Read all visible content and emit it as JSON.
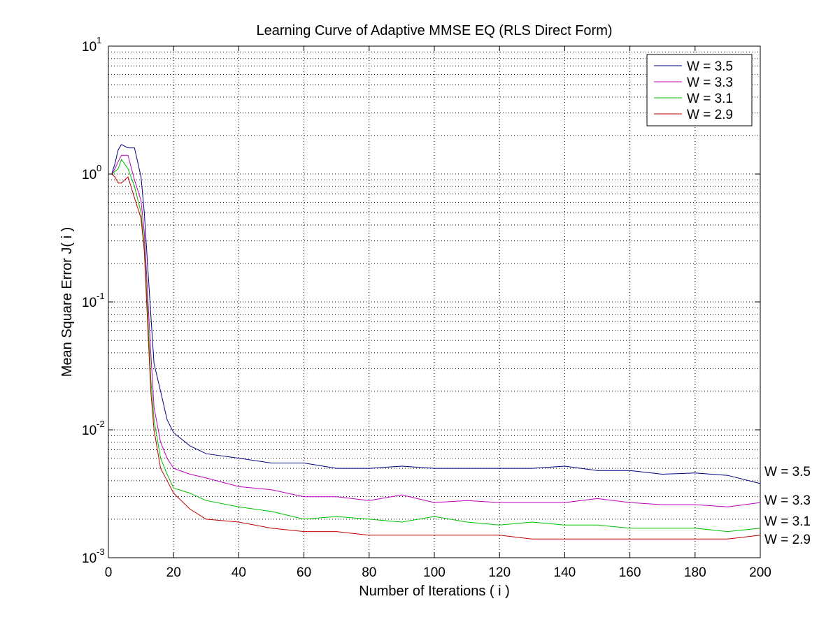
{
  "chart_data": {
    "type": "line",
    "title": "Learning Curve of Adaptive MMSE EQ (RLS Direct Form)",
    "xlabel": "Number of Iterations ( i )",
    "ylabel": "Mean Square Error  J( i )",
    "xlim": [
      0,
      200
    ],
    "ylim": [
      0.001,
      10
    ],
    "yscale": "log",
    "grid": true,
    "legend_position": "top-right",
    "x_ticks": [
      "0",
      "20",
      "40",
      "60",
      "80",
      "100",
      "120",
      "140",
      "160",
      "180",
      "200"
    ],
    "y_ticks": [
      {
        "base": "10",
        "exp": "-3"
      },
      {
        "base": "10",
        "exp": "-2"
      },
      {
        "base": "10",
        "exp": "-1"
      },
      {
        "base": "10",
        "exp": "0"
      },
      {
        "base": "10",
        "exp": "1"
      }
    ],
    "end_labels": [
      "W = 3.5",
      "W = 3.3",
      "W = 3.1",
      "W = 2.9"
    ],
    "series": [
      {
        "name": "W = 3.5",
        "color": "#00007f",
        "x": [
          1,
          2,
          3,
          4,
          6,
          8,
          10,
          11,
          12,
          13,
          14,
          16,
          18,
          20,
          25,
          30,
          40,
          50,
          60,
          70,
          80,
          90,
          100,
          110,
          120,
          130,
          140,
          150,
          160,
          170,
          180,
          190,
          200
        ],
        "y": [
          1.0,
          1.2,
          1.55,
          1.7,
          1.6,
          1.6,
          0.95,
          0.5,
          0.2,
          0.08,
          0.033,
          0.02,
          0.012,
          0.0095,
          0.0075,
          0.0065,
          0.006,
          0.0055,
          0.0055,
          0.005,
          0.005,
          0.0052,
          0.005,
          0.005,
          0.005,
          0.005,
          0.0052,
          0.0048,
          0.0048,
          0.0045,
          0.0046,
          0.0044,
          0.0038
        ]
      },
      {
        "name": "W = 3.3",
        "color": "#bf00bf",
        "x": [
          1,
          2,
          3,
          4,
          6,
          8,
          10,
          11,
          12,
          13,
          14,
          16,
          18,
          20,
          25,
          30,
          40,
          50,
          60,
          70,
          80,
          90,
          100,
          110,
          120,
          130,
          140,
          150,
          160,
          170,
          180,
          190,
          200
        ],
        "y": [
          1.0,
          1.1,
          1.25,
          1.4,
          1.4,
          0.9,
          0.62,
          0.35,
          0.12,
          0.04,
          0.015,
          0.008,
          0.006,
          0.005,
          0.0045,
          0.0042,
          0.0036,
          0.0034,
          0.003,
          0.003,
          0.0028,
          0.0031,
          0.0027,
          0.0028,
          0.0027,
          0.0027,
          0.0027,
          0.0029,
          0.0027,
          0.0026,
          0.0026,
          0.0025,
          0.0027
        ]
      },
      {
        "name": "W = 3.1",
        "color": "#00bf00",
        "x": [
          1,
          2,
          3,
          4,
          6,
          8,
          10,
          11,
          12,
          13,
          14,
          16,
          18,
          20,
          25,
          30,
          40,
          50,
          60,
          70,
          80,
          90,
          100,
          110,
          120,
          130,
          140,
          150,
          160,
          170,
          180,
          190,
          200
        ],
        "y": [
          1.0,
          1.05,
          1.1,
          1.3,
          1.1,
          0.8,
          0.5,
          0.28,
          0.09,
          0.025,
          0.012,
          0.006,
          0.0045,
          0.0035,
          0.0032,
          0.0028,
          0.0025,
          0.0023,
          0.002,
          0.0021,
          0.002,
          0.0019,
          0.0021,
          0.0019,
          0.0018,
          0.0019,
          0.0018,
          0.0018,
          0.0017,
          0.0017,
          0.0017,
          0.0016,
          0.0017
        ]
      },
      {
        "name": "W = 2.9",
        "color": "#bf0000",
        "x": [
          1,
          2,
          3,
          4,
          6,
          8,
          10,
          11,
          12,
          13,
          14,
          16,
          18,
          20,
          25,
          30,
          40,
          50,
          60,
          70,
          80,
          90,
          100,
          110,
          120,
          130,
          140,
          150,
          160,
          170,
          180,
          190,
          200
        ],
        "y": [
          1.0,
          0.95,
          0.85,
          0.85,
          0.95,
          0.65,
          0.45,
          0.25,
          0.07,
          0.02,
          0.01,
          0.005,
          0.004,
          0.0032,
          0.0024,
          0.002,
          0.0019,
          0.0017,
          0.0016,
          0.0016,
          0.0015,
          0.0015,
          0.0015,
          0.0015,
          0.0015,
          0.0014,
          0.0014,
          0.0014,
          0.0014,
          0.0014,
          0.0014,
          0.0014,
          0.0015
        ]
      }
    ]
  }
}
